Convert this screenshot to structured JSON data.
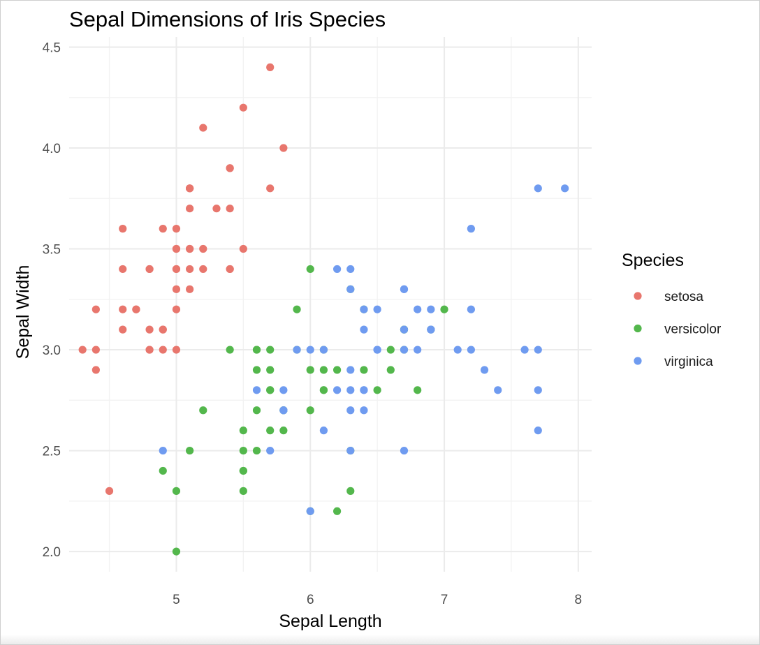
{
  "chart_data": {
    "type": "scatter",
    "title": "Sepal Dimensions of Iris Species",
    "xlabel": "Sepal Length",
    "ylabel": "Sepal Width",
    "xlim": [
      4.2,
      8.1
    ],
    "ylim": [
      1.9,
      4.55
    ],
    "x_ticks": [
      5,
      6,
      7,
      8
    ],
    "x_tick_labels": [
      "5",
      "6",
      "7",
      "8"
    ],
    "y_ticks": [
      2.0,
      2.5,
      3.0,
      3.5,
      4.0,
      4.5
    ],
    "y_tick_labels": [
      "2.0",
      "2.5",
      "3.0",
      "3.5",
      "4.0",
      "4.5"
    ],
    "grid": true,
    "legend": {
      "title": "Species",
      "position": "right"
    },
    "series": [
      {
        "name": "setosa",
        "color": "#e8766d",
        "points": [
          [
            5.1,
            3.5
          ],
          [
            4.9,
            3.0
          ],
          [
            4.7,
            3.2
          ],
          [
            4.6,
            3.1
          ],
          [
            5.0,
            3.6
          ],
          [
            5.4,
            3.9
          ],
          [
            4.6,
            3.4
          ],
          [
            5.0,
            3.4
          ],
          [
            4.4,
            2.9
          ],
          [
            4.9,
            3.1
          ],
          [
            5.4,
            3.7
          ],
          [
            4.8,
            3.4
          ],
          [
            4.8,
            3.0
          ],
          [
            4.3,
            3.0
          ],
          [
            5.8,
            4.0
          ],
          [
            5.7,
            4.4
          ],
          [
            5.4,
            3.9
          ],
          [
            5.1,
            3.5
          ],
          [
            5.7,
            3.8
          ],
          [
            5.1,
            3.8
          ],
          [
            5.4,
            3.4
          ],
          [
            5.1,
            3.7
          ],
          [
            4.6,
            3.6
          ],
          [
            5.1,
            3.3
          ],
          [
            4.8,
            3.4
          ],
          [
            5.0,
            3.0
          ],
          [
            5.0,
            3.4
          ],
          [
            5.2,
            3.5
          ],
          [
            5.2,
            3.4
          ],
          [
            4.7,
            3.2
          ],
          [
            4.8,
            3.1
          ],
          [
            5.4,
            3.4
          ],
          [
            5.2,
            4.1
          ],
          [
            5.5,
            4.2
          ],
          [
            4.9,
            3.1
          ],
          [
            5.0,
            3.2
          ],
          [
            5.5,
            3.5
          ],
          [
            4.9,
            3.6
          ],
          [
            4.4,
            3.0
          ],
          [
            5.1,
            3.4
          ],
          [
            5.0,
            3.5
          ],
          [
            4.5,
            2.3
          ],
          [
            4.4,
            3.2
          ],
          [
            5.0,
            3.5
          ],
          [
            5.1,
            3.8
          ],
          [
            4.8,
            3.0
          ],
          [
            5.1,
            3.8
          ],
          [
            4.6,
            3.2
          ],
          [
            5.3,
            3.7
          ],
          [
            5.0,
            3.3
          ]
        ]
      },
      {
        "name": "versicolor",
        "color": "#53b74c",
        "points": [
          [
            7.0,
            3.2
          ],
          [
            6.4,
            3.2
          ],
          [
            6.9,
            3.1
          ],
          [
            5.5,
            2.3
          ],
          [
            6.5,
            2.8
          ],
          [
            5.7,
            2.8
          ],
          [
            6.3,
            3.3
          ],
          [
            4.9,
            2.4
          ],
          [
            6.6,
            2.9
          ],
          [
            5.2,
            2.7
          ],
          [
            5.0,
            2.0
          ],
          [
            5.9,
            3.0
          ],
          [
            6.0,
            2.2
          ],
          [
            6.1,
            2.9
          ],
          [
            5.6,
            2.9
          ],
          [
            6.7,
            3.1
          ],
          [
            5.6,
            3.0
          ],
          [
            5.8,
            2.7
          ],
          [
            6.2,
            2.2
          ],
          [
            5.6,
            2.5
          ],
          [
            5.9,
            3.2
          ],
          [
            6.1,
            2.8
          ],
          [
            6.3,
            2.5
          ],
          [
            6.1,
            2.8
          ],
          [
            6.4,
            2.9
          ],
          [
            6.6,
            3.0
          ],
          [
            6.8,
            2.8
          ],
          [
            6.7,
            3.0
          ],
          [
            6.0,
            2.9
          ],
          [
            5.7,
            2.6
          ],
          [
            5.5,
            2.4
          ],
          [
            5.5,
            2.4
          ],
          [
            5.8,
            2.7
          ],
          [
            6.0,
            2.7
          ],
          [
            5.4,
            3.0
          ],
          [
            6.0,
            3.4
          ],
          [
            6.7,
            3.1
          ],
          [
            6.3,
            2.3
          ],
          [
            5.6,
            3.0
          ],
          [
            5.5,
            2.5
          ],
          [
            5.5,
            2.6
          ],
          [
            6.1,
            3.0
          ],
          [
            5.8,
            2.6
          ],
          [
            5.0,
            2.3
          ],
          [
            5.6,
            2.7
          ],
          [
            5.7,
            3.0
          ],
          [
            5.7,
            2.9
          ],
          [
            6.2,
            2.9
          ],
          [
            5.1,
            2.5
          ],
          [
            5.7,
            2.8
          ]
        ]
      },
      {
        "name": "virginica",
        "color": "#6f9bf0",
        "points": [
          [
            6.3,
            3.3
          ],
          [
            5.8,
            2.7
          ],
          [
            7.1,
            3.0
          ],
          [
            6.3,
            2.9
          ],
          [
            6.5,
            3.0
          ],
          [
            7.6,
            3.0
          ],
          [
            4.9,
            2.5
          ],
          [
            7.3,
            2.9
          ],
          [
            6.7,
            2.5
          ],
          [
            7.2,
            3.6
          ],
          [
            6.5,
            3.2
          ],
          [
            6.4,
            2.7
          ],
          [
            6.8,
            3.0
          ],
          [
            5.7,
            2.5
          ],
          [
            5.8,
            2.8
          ],
          [
            6.4,
            3.2
          ],
          [
            6.5,
            3.0
          ],
          [
            7.7,
            3.8
          ],
          [
            7.7,
            2.6
          ],
          [
            6.0,
            2.2
          ],
          [
            6.9,
            3.2
          ],
          [
            5.6,
            2.8
          ],
          [
            7.7,
            2.8
          ],
          [
            6.3,
            2.7
          ],
          [
            6.7,
            3.3
          ],
          [
            7.2,
            3.2
          ],
          [
            6.2,
            2.8
          ],
          [
            6.1,
            3.0
          ],
          [
            6.4,
            2.8
          ],
          [
            7.2,
            3.0
          ],
          [
            7.4,
            2.8
          ],
          [
            7.9,
            3.8
          ],
          [
            6.4,
            2.8
          ],
          [
            6.3,
            2.8
          ],
          [
            6.1,
            2.6
          ],
          [
            7.7,
            3.0
          ],
          [
            6.3,
            3.4
          ],
          [
            6.4,
            3.1
          ],
          [
            6.0,
            3.0
          ],
          [
            6.9,
            3.1
          ],
          [
            6.7,
            3.1
          ],
          [
            6.9,
            3.1
          ],
          [
            5.8,
            2.7
          ],
          [
            6.8,
            3.2
          ],
          [
            6.7,
            3.3
          ],
          [
            6.7,
            3.0
          ],
          [
            6.3,
            2.5
          ],
          [
            6.5,
            3.0
          ],
          [
            6.2,
            3.4
          ],
          [
            5.9,
            3.0
          ]
        ]
      }
    ]
  }
}
